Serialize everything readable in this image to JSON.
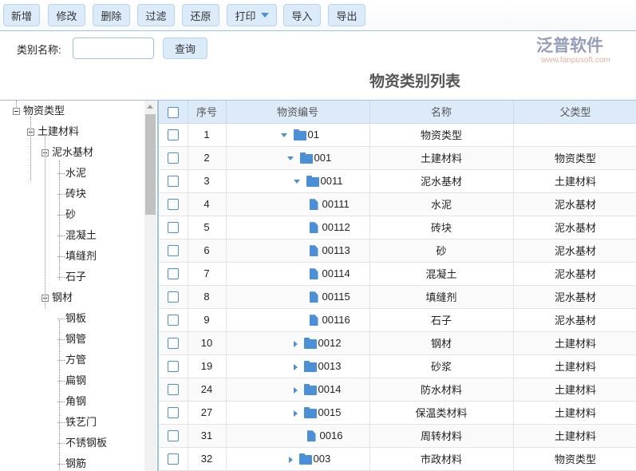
{
  "toolbar": {
    "add": "新增",
    "edit": "修改",
    "delete": "删除",
    "filter": "过滤",
    "restore": "还原",
    "print": "打印",
    "import": "导入",
    "export": "导出"
  },
  "search": {
    "label": "类别名称:",
    "value": "",
    "query": "查询"
  },
  "page_title": "物资类别列表",
  "tree": [
    {
      "label": "物资类型",
      "level": 0,
      "expanded": true
    },
    {
      "label": "土建材料",
      "level": 1,
      "expanded": true
    },
    {
      "label": "泥水基材",
      "level": 2,
      "expanded": true
    },
    {
      "label": "水泥",
      "level": 3
    },
    {
      "label": "砖块",
      "level": 3
    },
    {
      "label": "砂",
      "level": 3
    },
    {
      "label": "混凝土",
      "level": 3
    },
    {
      "label": "填缝剂",
      "level": 3
    },
    {
      "label": "石子",
      "level": 3
    },
    {
      "label": "钢材",
      "level": 2,
      "expanded": true
    },
    {
      "label": "钢板",
      "level": 3
    },
    {
      "label": "钢管",
      "level": 3
    },
    {
      "label": "方管",
      "level": 3
    },
    {
      "label": "扁钢",
      "level": 3
    },
    {
      "label": "角钢",
      "level": 3
    },
    {
      "label": "铁艺门",
      "level": 3
    },
    {
      "label": "不锈钢板",
      "level": 3
    },
    {
      "label": "钢筋",
      "level": 3
    }
  ],
  "grid": {
    "headers": [
      "序号",
      "物资编号",
      "名称",
      "父类型"
    ],
    "rows": [
      {
        "no": "1",
        "code": "01",
        "name": "物资类型",
        "parent": "",
        "level": 0,
        "type": "open"
      },
      {
        "no": "2",
        "code": "001",
        "name": "土建材料",
        "parent": "物资类型",
        "level": 1,
        "type": "open"
      },
      {
        "no": "3",
        "code": "0011",
        "name": "泥水基材",
        "parent": "土建材料",
        "level": 2,
        "type": "open"
      },
      {
        "no": "4",
        "code": "00111",
        "name": "水泥",
        "parent": "泥水基材",
        "level": 3,
        "type": "leaf"
      },
      {
        "no": "5",
        "code": "00112",
        "name": "砖块",
        "parent": "泥水基材",
        "level": 3,
        "type": "leaf"
      },
      {
        "no": "6",
        "code": "00113",
        "name": "砂",
        "parent": "泥水基材",
        "level": 3,
        "type": "leaf"
      },
      {
        "no": "7",
        "code": "00114",
        "name": "混凝土",
        "parent": "泥水基材",
        "level": 3,
        "type": "leaf"
      },
      {
        "no": "8",
        "code": "00115",
        "name": "填缝剂",
        "parent": "泥水基材",
        "level": 3,
        "type": "leaf"
      },
      {
        "no": "9",
        "code": "00116",
        "name": "石子",
        "parent": "泥水基材",
        "level": 3,
        "type": "leaf"
      },
      {
        "no": "10",
        "code": "0012",
        "name": "钢材",
        "parent": "土建材料",
        "level": 2,
        "type": "closed"
      },
      {
        "no": "19",
        "code": "0013",
        "name": "砂浆",
        "parent": "土建材料",
        "level": 2,
        "type": "closed"
      },
      {
        "no": "24",
        "code": "0014",
        "name": "防水材料",
        "parent": "土建材料",
        "level": 2,
        "type": "closed"
      },
      {
        "no": "27",
        "code": "0015",
        "name": "保温类材料",
        "parent": "土建材料",
        "level": 2,
        "type": "closed"
      },
      {
        "no": "31",
        "code": "0016",
        "name": "周转材料",
        "parent": "土建材料",
        "level": 2,
        "type": "leaf2"
      },
      {
        "no": "32",
        "code": "003",
        "name": "市政材料",
        "parent": "物资类型",
        "level": 1,
        "type": "closed"
      }
    ]
  },
  "watermark": {
    "text": "泛普软件",
    "url": "www.fanpusoft.com"
  },
  "colors": {
    "accent": "#4a90d9",
    "header_bg": "#ddebf9",
    "button_bg": "#dcebf9"
  }
}
